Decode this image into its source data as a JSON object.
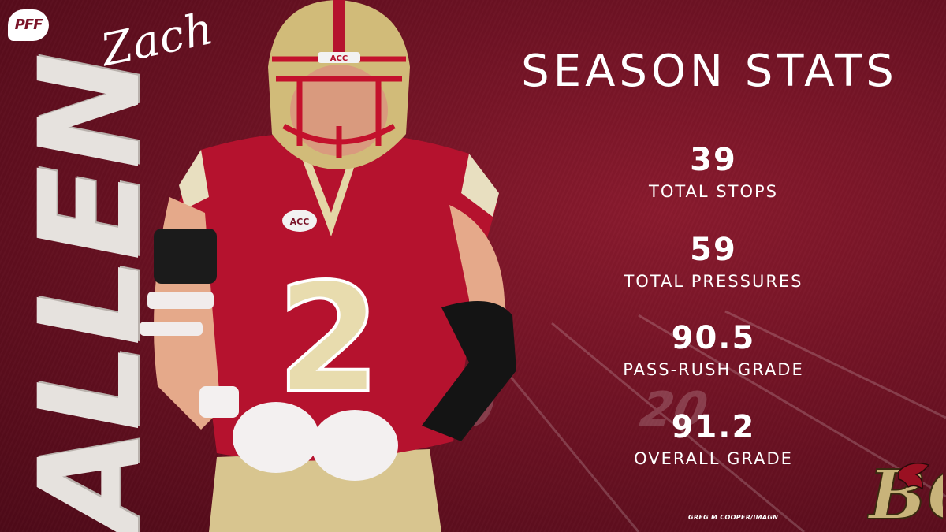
{
  "brand": {
    "logo_text": "PFF",
    "accent": "#7a1428",
    "gold": "#c8b37a"
  },
  "player": {
    "first_name": "Zach",
    "last_name": "ALLEN",
    "jersey_number": "2",
    "helmet_text": "ACC",
    "chest_patch": "ACC"
  },
  "title": "SEASON STATS",
  "stats": [
    {
      "value": "39",
      "label": "TOTAL STOPS"
    },
    {
      "value": "59",
      "label": "TOTAL PRESSURES"
    },
    {
      "value": "90.5",
      "label": "PASS-RUSH GRADE"
    },
    {
      "value": "91.2",
      "label": "OVERALL GRADE"
    }
  ],
  "photo_credit": "GREG M COOPER/IMAGN",
  "team_logo": {
    "text": "BC",
    "icon": "eagle-monogram-icon"
  }
}
